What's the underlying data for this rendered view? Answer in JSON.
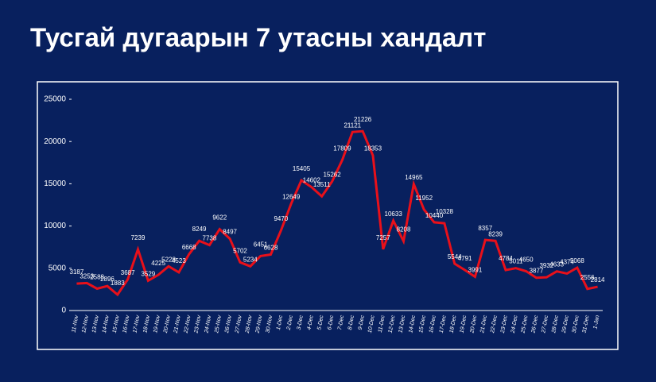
{
  "chart_data": {
    "type": "line",
    "title": "Тусгай дугаарын 7 утасны хандалт",
    "categories": [
      "11-Nov",
      "12-Nov",
      "13-Nov",
      "14-Nov",
      "15-Nov",
      "16-Nov",
      "17-Nov",
      "18-Nov",
      "19-Nov",
      "20-Nov",
      "21-Nov",
      "22-Nov",
      "23-Nov",
      "24-Nov",
      "25-Nov",
      "26-Nov",
      "27-Nov",
      "28-Nov",
      "29-Nov",
      "30-Nov",
      "1-Dec",
      "2-Dec",
      "3-Dec",
      "4-Dec",
      "5-Dec",
      "6-Dec",
      "7-Dec",
      "8-Dec",
      "9-Dec",
      "10-Dec",
      "11-Dec",
      "12-Dec",
      "13-Dec",
      "14-Dec",
      "15-Dec",
      "16-Dec",
      "17-Dec",
      "18-Dec",
      "19-Dec",
      "20-Dec",
      "21-Dec",
      "22-Dec",
      "23-Dec",
      "24-Dec",
      "25-Dec",
      "26-Dec",
      "27-Dec",
      "28-Dec",
      "29-Dec",
      "30-Dec",
      "31-Dec",
      "1-Jan"
    ],
    "values": [
      3187,
      3253,
      2588,
      2896,
      1883,
      3687,
      7239,
      3529,
      4225,
      5228,
      4523,
      6668,
      8249,
      7738,
      9622,
      8497,
      5702,
      5234,
      6451,
      6628,
      9470,
      12649,
      15405,
      14602,
      13511,
      15262,
      17809,
      21121,
      21226,
      18353,
      7257,
      10633,
      8208,
      14965,
      11952,
      10440,
      10328,
      5544,
      4791,
      3991,
      8357,
      8239,
      4784,
      5011,
      4650,
      3877,
      3932,
      4633,
      4374,
      5068,
      2556,
      2814
    ],
    "color": "#e8101a",
    "ylim": [
      0,
      25000
    ],
    "yticks": [
      0,
      5000,
      10000,
      15000,
      20000,
      25000
    ]
  }
}
